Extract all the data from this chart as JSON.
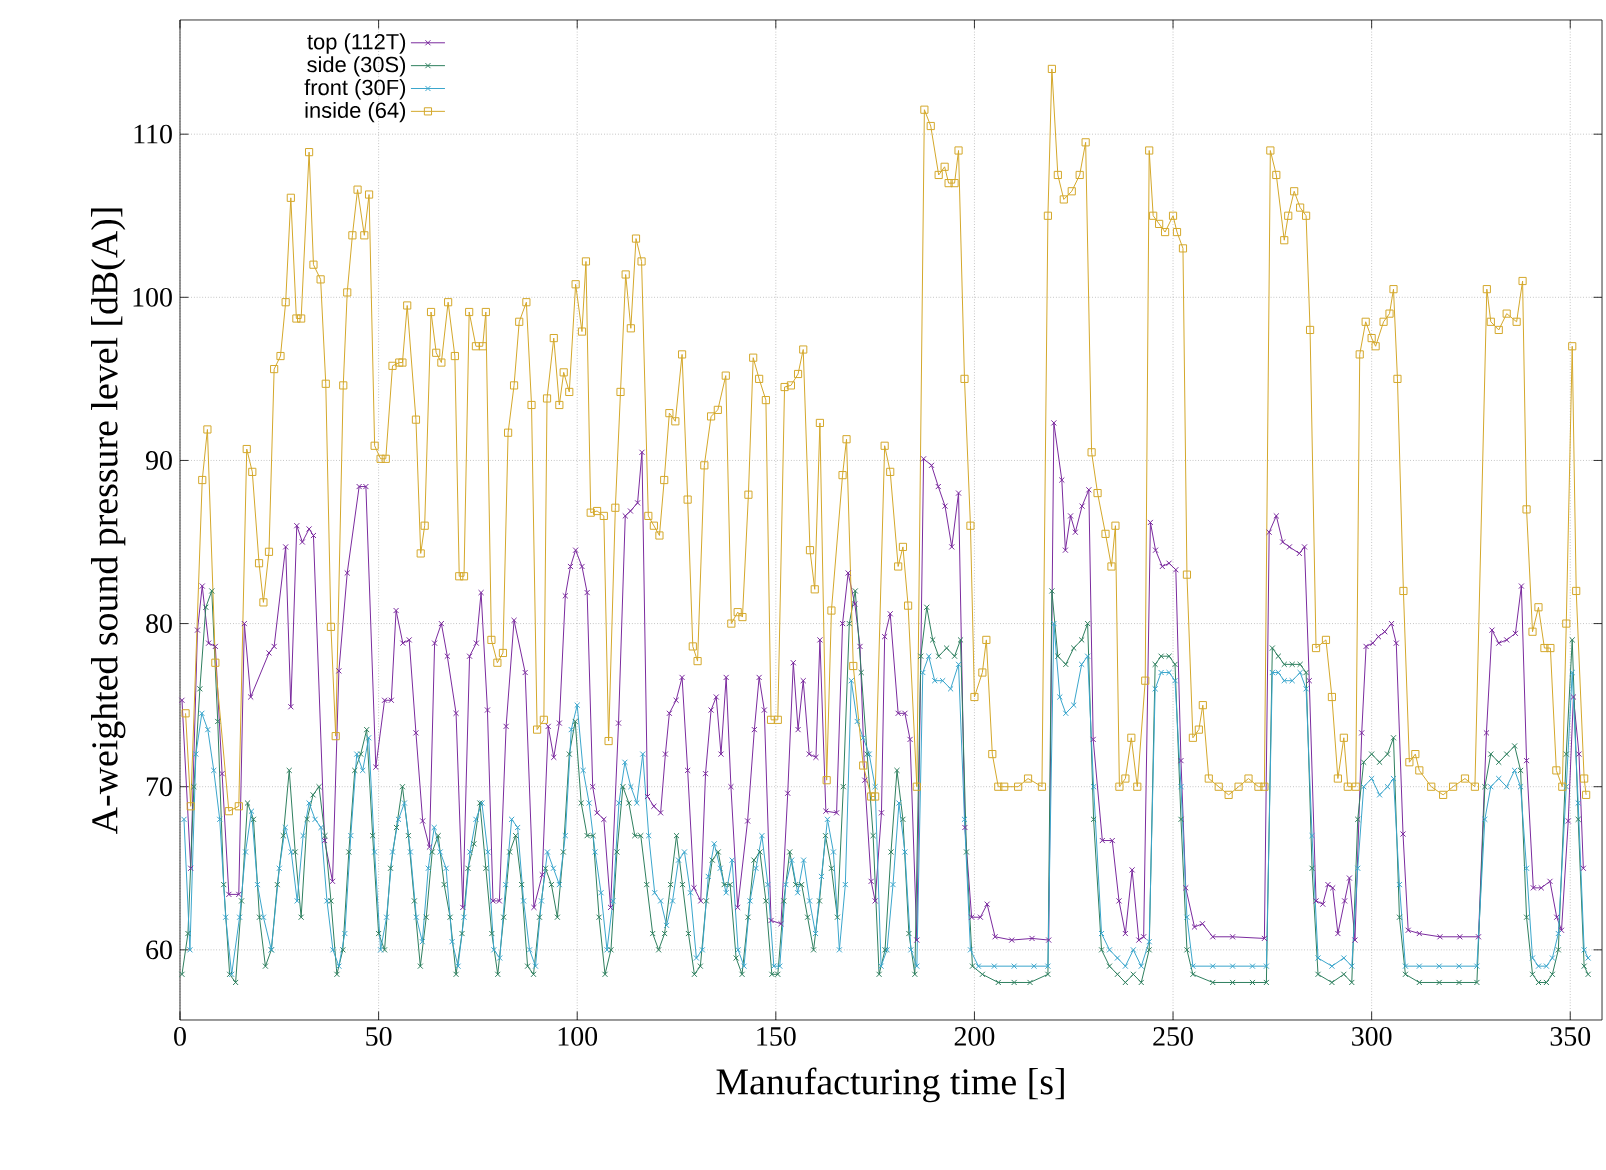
{
  "chart_data": {
    "type": "line",
    "xlabel": "Manufacturing time [s]",
    "ylabel": "A-weighted sound pressure level [dB(A)]",
    "xlim": [
      0,
      358
    ],
    "ylim": [
      55.7,
      117
    ],
    "xticks": [
      0,
      50,
      100,
      150,
      200,
      250,
      300,
      350
    ],
    "yticks": [
      60,
      70,
      80,
      90,
      100,
      110
    ],
    "grid": true,
    "legend": "top left",
    "series": [
      {
        "name": "top (112T)",
        "color": "#7a2a9e",
        "marker": "cross",
        "x": [
          0.5,
          2.7,
          4.4,
          5.6,
          7.2,
          8.9,
          10.6,
          12.3,
          14.8,
          16.2,
          17.8,
          22.4,
          23.7,
          26.6,
          27.9,
          29.4,
          30.8,
          32.5,
          33.6,
          36.4,
          38.4,
          40,
          42.1,
          45.1,
          46.8,
          49.3,
          51.5,
          53.2,
          54.4,
          56.1,
          57.7,
          59.4,
          61.1,
          62.8,
          64.1,
          65.8,
          67.3,
          69.5,
          71.2,
          72.9,
          74.6,
          75.8,
          77.4,
          78.8,
          80.4,
          82.1,
          84.1,
          86.9,
          89.1,
          91.2,
          92.7,
          94.1,
          95.5,
          97,
          98.3,
          99.6,
          101.2,
          102.5,
          103.9,
          105,
          106.7,
          108.4,
          110.4,
          112.1,
          113.4,
          115.2,
          116.3,
          117.7,
          119.3,
          121,
          122.2,
          123.2,
          124.9,
          126.4,
          127.8,
          129.4,
          131.1,
          132.3,
          133.7,
          135,
          136.2,
          137.5,
          138.7,
          140.4,
          142.9,
          144.6,
          145.8,
          147.1,
          148.8,
          151.3,
          153,
          154.4,
          155.6,
          156.9,
          158.4,
          160.1,
          161.1,
          162.6,
          165.3,
          166.8,
          168.2,
          169.9,
          171.2,
          172.4,
          174,
          175,
          176.6,
          177.4,
          178.8,
          180.8,
          182.5,
          183.8,
          185.5,
          187.2,
          189.2,
          190.9,
          192.6,
          194.3,
          196,
          197.6,
          199.3,
          201.5,
          203.2,
          205.2,
          209.4,
          214.5,
          218.7,
          220,
          222,
          222.9,
          224.2,
          225.4,
          227.1,
          228.8,
          229.9,
          232.2,
          234.7,
          236.4,
          238,
          239.7,
          241.4,
          242.6,
          244.3,
          245.6,
          247.3,
          249,
          250.7,
          252,
          253.2,
          255.4,
          257.4,
          260,
          265,
          273,
          274.2,
          276,
          277.6,
          279.3,
          281.8,
          283.1,
          284.3,
          286,
          287.7,
          289,
          290.2,
          291.5,
          293.2,
          294.4,
          295.8,
          297.5,
          298.6,
          300.3,
          301.7,
          303.3,
          305,
          306.2,
          307.9,
          309.2,
          312,
          317.2,
          322.2,
          326.9,
          328.9,
          330.3,
          332,
          334,
          336.2,
          337.7,
          339,
          340.7,
          342.7,
          344.9,
          346.6,
          347.8,
          349.5,
          350.8,
          352.2,
          353.3
        ],
        "values": [
          75.3,
          65,
          79.6,
          82.3,
          78.8,
          78.6,
          70.8,
          63.4,
          63.4,
          80,
          75.5,
          78.2,
          78.6,
          84.7,
          74.9,
          86,
          85,
          85.8,
          85.4,
          66.7,
          64.2,
          77.1,
          83.1,
          88.4,
          88.4,
          71.2,
          75.3,
          75.3,
          80.8,
          78.8,
          79,
          73.3,
          67.9,
          66.3,
          78.8,
          80,
          78,
          74.5,
          62.6,
          78,
          78.8,
          81.9,
          74.7,
          63,
          63,
          73.7,
          80.2,
          77,
          62.6,
          64.6,
          73.7,
          71.8,
          73.9,
          81.7,
          83.5,
          84.5,
          83.5,
          81.9,
          70,
          68.4,
          68,
          62.6,
          73.9,
          86.6,
          86.9,
          87.4,
          90.5,
          69.4,
          68.8,
          68.4,
          72,
          74.5,
          75.3,
          76.7,
          71,
          63.8,
          63,
          70.8,
          74.7,
          75.5,
          72,
          76.7,
          70,
          62.6,
          67.9,
          73.5,
          76.7,
          74.7,
          61.8,
          61.6,
          69.6,
          77.6,
          73.5,
          76.5,
          72,
          71.8,
          79,
          68.5,
          68.4,
          80,
          83.1,
          81.2,
          78.6,
          70.4,
          64.2,
          63,
          68.4,
          79.2,
          80.6,
          74.5,
          74.5,
          72.9,
          60.6,
          90.1,
          89.7,
          88.4,
          87.2,
          84.7,
          88,
          67.5,
          62,
          62,
          62.8,
          60.8,
          60.6,
          60.7,
          60.6,
          92.3,
          88.8,
          84.5,
          86.6,
          85.6,
          87.2,
          88.2,
          72.9,
          66.7,
          66.7,
          63,
          61,
          64.9,
          60.6,
          60.8,
          86.2,
          84.5,
          83.5,
          83.7,
          83.3,
          71.6,
          63.8,
          61.4,
          61.6,
          60.8,
          60.8,
          60.7,
          85.6,
          86.6,
          85,
          84.7,
          84.3,
          84.7,
          76.5,
          63,
          62.8,
          64,
          63.8,
          61,
          63,
          64.4,
          60.6,
          73.3,
          78.6,
          78.8,
          79.2,
          79.5,
          80,
          78.8,
          67.1,
          61.2,
          61,
          60.8,
          60.8,
          60.8,
          73.3,
          79.6,
          78.8,
          79,
          79.4,
          82.3,
          71.6,
          63.8,
          63.8,
          64.2,
          62,
          61.2,
          67.9,
          75.5,
          72,
          65
        ]
      },
      {
        "name": "side (30S)",
        "color": "#2e7f5e",
        "marker": "cross",
        "x": [
          0.5,
          2,
          3.5,
          5,
          6.5,
          8,
          9.5,
          11,
          12.5,
          14,
          15.5,
          17,
          18.5,
          20,
          21.5,
          23,
          24.5,
          26,
          27.5,
          29,
          30.5,
          32,
          33.5,
          35,
          36.5,
          38,
          39.5,
          41,
          42.5,
          44,
          45.5,
          47,
          48.5,
          50,
          51.5,
          53,
          54.5,
          56,
          57.5,
          59,
          60.5,
          62,
          63.5,
          65,
          66.5,
          68,
          69.5,
          71,
          72.5,
          74,
          75.5,
          77,
          78.5,
          80,
          81.5,
          83,
          84.5,
          86,
          87.5,
          89,
          90.5,
          92,
          93.5,
          95,
          96.5,
          98,
          99.5,
          101,
          102.5,
          104,
          105.5,
          107,
          108.5,
          110,
          111.5,
          113,
          114.5,
          116,
          117.5,
          119,
          120.5,
          122,
          123.5,
          125,
          126.5,
          128,
          129.5,
          131,
          132.5,
          134,
          135.5,
          137,
          138.5,
          140,
          141.5,
          143,
          144.5,
          146,
          147.5,
          149,
          150.5,
          152,
          153.5,
          155,
          156.5,
          158,
          159.5,
          161,
          162.5,
          164,
          165.5,
          167,
          168.5,
          170,
          171.5,
          173,
          174.5,
          176,
          177.5,
          179,
          180.5,
          182,
          183.5,
          185,
          186.5,
          188,
          189.5,
          191,
          193,
          195,
          196.5,
          198,
          199.5,
          202,
          206,
          210,
          214,
          218.5,
          219.5,
          221,
          223,
          225,
          227,
          228.5,
          230,
          232,
          234,
          236,
          238,
          240,
          242,
          244,
          245.5,
          247,
          249,
          250.5,
          252,
          253.5,
          255,
          260,
          265,
          270,
          273.5,
          275,
          276.5,
          278,
          280,
          282,
          283.5,
          285,
          286.5,
          290,
          293,
          295,
          296.5,
          298,
          300,
          302,
          304,
          305.5,
          307,
          308.5,
          312,
          317,
          322,
          326.5,
          328.5,
          330,
          332,
          334,
          336,
          337.5,
          339,
          340.5,
          342,
          344,
          345.5,
          347,
          349,
          350.5,
          352,
          353.5,
          354.5
        ],
        "values": [
          58.5,
          61,
          70,
          76,
          81,
          82,
          74,
          64,
          58.5,
          58,
          63,
          69,
          68,
          62,
          59,
          60,
          64,
          67,
          71,
          66,
          62,
          68,
          69.5,
          70,
          67,
          63,
          58.5,
          60,
          66,
          71,
          72,
          73.5,
          67,
          61,
          60,
          65,
          67.5,
          70,
          67,
          63,
          59,
          62,
          66,
          67,
          64,
          62,
          58.5,
          61,
          65,
          66.5,
          69,
          65,
          61,
          58.5,
          62,
          66,
          67,
          64,
          59,
          58.5,
          62,
          65,
          64,
          62,
          66,
          72,
          74,
          69,
          67,
          67,
          62,
          58.5,
          60,
          66,
          70,
          69,
          67,
          67,
          64,
          61,
          60,
          61,
          64,
          67,
          64,
          61,
          58.5,
          59,
          63,
          65.5,
          66,
          64,
          64,
          59.5,
          58.5,
          62,
          65.5,
          66,
          63,
          58.5,
          58.5,
          63,
          66,
          64,
          64,
          62,
          60,
          63,
          67,
          65,
          62,
          70,
          80,
          82,
          77,
          72,
          67,
          58.5,
          60,
          66,
          71,
          68,
          61,
          58.5,
          78,
          81,
          79,
          78,
          78.5,
          78,
          79,
          66,
          59,
          58.5,
          58,
          58,
          58,
          58.5,
          82,
          78,
          77.5,
          78.5,
          79,
          80,
          68,
          60,
          59,
          58.5,
          58,
          58.5,
          58,
          60,
          77.5,
          78,
          78,
          77.5,
          68,
          60,
          58.5,
          58,
          58,
          58,
          58,
          78.5,
          78,
          77.5,
          77.5,
          77.5,
          77,
          65,
          58.5,
          58,
          58.5,
          58,
          68,
          71.5,
          72,
          71.5,
          72,
          73,
          62,
          58.5,
          58,
          58,
          58,
          58,
          70,
          72,
          71.5,
          72,
          72.5,
          71,
          62,
          58.5,
          58,
          58,
          58.5,
          60,
          72,
          79,
          68,
          59,
          58.5
        ]
      },
      {
        "name": "front (30F)",
        "color": "#3aa6cc",
        "marker": "cross",
        "x": [
          1,
          2.5,
          4,
          5.5,
          7,
          8.5,
          10,
          11.5,
          13,
          15,
          16.5,
          18,
          19.5,
          21,
          23,
          25,
          26.5,
          28,
          29.5,
          31,
          32.5,
          34,
          35.5,
          37,
          38.5,
          40,
          41.5,
          43,
          44.5,
          46,
          47.5,
          49,
          50.5,
          52,
          53.5,
          55,
          56.5,
          58,
          59.5,
          61,
          62.5,
          64,
          65.5,
          67,
          68.5,
          70,
          71.5,
          73,
          74.5,
          76,
          77.5,
          79,
          80.5,
          82,
          83.5,
          85,
          86.5,
          88,
          89.5,
          91,
          92.5,
          94,
          95.5,
          97,
          98.5,
          100,
          101.5,
          103,
          104.5,
          106,
          107.5,
          109,
          110.5,
          112,
          113.5,
          115,
          116.5,
          118,
          119.5,
          121,
          122.5,
          124,
          125.5,
          127,
          128.5,
          130,
          131.5,
          133,
          134.5,
          136,
          137.5,
          139,
          140.5,
          142,
          143.5,
          145,
          146.5,
          148,
          149.5,
          151,
          152.5,
          154,
          155.5,
          157,
          158.5,
          160,
          161.5,
          163,
          164.5,
          166,
          167.5,
          169,
          170.5,
          172,
          173.5,
          175,
          176.5,
          178,
          179.5,
          181,
          182.5,
          184,
          185.5,
          187,
          188.5,
          190,
          192,
          194,
          196,
          197.5,
          199,
          201,
          205,
          210,
          215,
          218.5,
          220,
          221.5,
          223,
          225,
          227,
          228.5,
          230,
          232,
          234,
          236,
          238,
          240,
          242,
          244,
          245.5,
          247,
          249,
          250.5,
          252,
          253.5,
          255,
          260,
          265,
          270,
          273.5,
          275,
          276.5,
          278,
          280,
          282,
          283.5,
          285,
          286.5,
          290,
          293,
          295,
          296.5,
          298,
          300,
          302,
          304,
          305.5,
          307,
          308.5,
          312,
          317,
          322,
          326.5,
          328.5,
          330,
          332,
          334,
          336,
          337.5,
          339,
          340.5,
          342,
          344,
          345.5,
          347,
          349,
          350.5,
          352,
          353.5,
          354.5
        ],
        "values": [
          68,
          60,
          72,
          74.5,
          73.5,
          71,
          68,
          62,
          58.5,
          62,
          66,
          68.5,
          64,
          62,
          60,
          65,
          67.5,
          66,
          63,
          67,
          69,
          68,
          67.5,
          63,
          60,
          59,
          61,
          67,
          72,
          71,
          73,
          66,
          60,
          62,
          66,
          68,
          69,
          66,
          62,
          60.5,
          65,
          67.5,
          66,
          65,
          60.5,
          59,
          62,
          66,
          68,
          69,
          66,
          60,
          59.5,
          64,
          68,
          67.5,
          63,
          60,
          59,
          63,
          66,
          65,
          64,
          67,
          73.5,
          75,
          71,
          69,
          66,
          63.5,
          60,
          63,
          69,
          71.5,
          70,
          69,
          72,
          67,
          63.5,
          63,
          61.5,
          63,
          65.5,
          66,
          63.5,
          59.5,
          60,
          64.5,
          66.5,
          65,
          63.5,
          65.5,
          60,
          59,
          63,
          65,
          67,
          64,
          59,
          59,
          64,
          65.5,
          63.5,
          65.5,
          63,
          61,
          64.5,
          68,
          66,
          60,
          64,
          76.5,
          74,
          73,
          72,
          70,
          59,
          60,
          64,
          69,
          66,
          60,
          59,
          77,
          78,
          76.5,
          76.5,
          76,
          77.5,
          68,
          60,
          59,
          59,
          59,
          59,
          59,
          80,
          75.5,
          74.5,
          75,
          77.5,
          78,
          70,
          61,
          60,
          59.5,
          59,
          60,
          59,
          60.5,
          76,
          77,
          77,
          76.5,
          70,
          62,
          59,
          59,
          59,
          59,
          59,
          77,
          77,
          76.5,
          76.5,
          77,
          76,
          67,
          59.5,
          59,
          59.5,
          59,
          65,
          70,
          70.5,
          69.5,
          70,
          70.5,
          64,
          59,
          59,
          59,
          59,
          59,
          68,
          70,
          70.5,
          70,
          71,
          70,
          65,
          59.5,
          59,
          59,
          59.5,
          61,
          70,
          77,
          69,
          60,
          59.5
        ]
      },
      {
        "name": "inside (64)",
        "color": "#d4a82a",
        "marker": "square",
        "x": [
          1.4,
          2.7,
          5.6,
          6.9,
          8.9,
          12.3,
          14.8,
          16.8,
          18.2,
          19.9,
          21,
          22.4,
          23.7,
          25.3,
          26.6,
          27.9,
          29.3,
          30.5,
          32.5,
          33.6,
          35.4,
          36.7,
          38,
          39.2,
          41.1,
          42.1,
          43.4,
          44.7,
          46.4,
          47.6,
          49,
          50.5,
          51.8,
          53.5,
          55.2,
          56,
          57.2,
          59.4,
          60.6,
          61.6,
          63.2,
          64.5,
          65.8,
          67.5,
          69.2,
          70.3,
          71.5,
          72.8,
          74.5,
          76.2,
          77,
          78.4,
          79.9,
          81.3,
          82.6,
          84.1,
          85.4,
          87.2,
          88.5,
          89.9,
          91.6,
          92.4,
          94.1,
          95.5,
          96.6,
          98,
          99.6,
          101.2,
          102.2,
          103.4,
          105,
          106.7,
          107.9,
          109.6,
          110.9,
          112.2,
          113.5,
          114.8,
          116.2,
          117.9,
          119.3,
          120.7,
          121.9,
          123.2,
          124.7,
          126.4,
          127.8,
          129.1,
          130.3,
          132,
          133.7,
          135.4,
          137.4,
          138.8,
          140.4,
          141.6,
          143.1,
          144.3,
          145.8,
          147.5,
          148.8,
          150.5,
          152.2,
          153.8,
          155.6,
          156.9,
          158.6,
          159.8,
          161.1,
          162.8,
          164,
          166.8,
          167.8,
          169.5,
          172,
          174,
          175,
          177.4,
          178.8,
          180.8,
          182,
          183.3,
          185.5,
          187.4,
          189,
          191,
          192.5,
          193.5,
          195,
          196,
          197.5,
          199,
          200,
          202,
          203,
          204.5,
          206,
          207.5,
          211,
          213.5,
          217,
          218.5,
          219.5,
          221,
          222.5,
          224.5,
          226.5,
          228,
          229.5,
          231,
          233,
          234.5,
          235.5,
          236.5,
          238,
          239.5,
          241,
          243,
          244,
          245,
          246.5,
          248,
          250,
          251,
          252.5,
          253.5,
          255,
          256.5,
          257.5,
          259,
          261.5,
          264,
          266.5,
          269,
          271.5,
          273,
          274.5,
          276,
          278,
          279,
          280.5,
          282,
          283.5,
          284.5,
          286,
          288.5,
          290,
          291.5,
          293,
          294,
          296,
          297,
          298.5,
          300,
          301,
          303,
          304.5,
          305.5,
          306.5,
          308,
          309.5,
          311,
          312,
          315,
          318,
          320.5,
          323.5,
          326,
          329,
          330,
          332,
          334,
          336.5,
          338,
          339,
          340.5,
          342,
          343.5,
          345,
          346.5,
          348,
          349,
          350.5,
          351.5,
          353.5,
          354
        ],
        "values": [
          74.5,
          68.8,
          88.8,
          91.9,
          77.6,
          68.5,
          68.8,
          90.7,
          89.3,
          83.7,
          81.3,
          84.4,
          95.6,
          96.4,
          99.7,
          106.1,
          98.7,
          98.7,
          108.9,
          102,
          101.1,
          94.7,
          79.8,
          73.1,
          94.6,
          100.3,
          103.8,
          106.6,
          103.8,
          106.3,
          90.9,
          90.1,
          90.1,
          95.8,
          96,
          96,
          99.5,
          92.5,
          84.3,
          86,
          99.1,
          96.6,
          96,
          99.7,
          96.4,
          82.9,
          82.9,
          99.1,
          97,
          97,
          99.1,
          79,
          77.6,
          78.2,
          91.7,
          94.6,
          98.5,
          99.7,
          93.4,
          73.5,
          74.1,
          93.8,
          97.5,
          93.4,
          95.4,
          94.2,
          100.8,
          97.9,
          102.2,
          86.8,
          86.9,
          86.6,
          72.8,
          87.1,
          94.2,
          101.4,
          98.1,
          103.6,
          102.2,
          86.6,
          86,
          85.4,
          88.8,
          92.9,
          92.4,
          96.5,
          87.6,
          78.6,
          77.7,
          89.7,
          92.7,
          93.1,
          95.2,
          80,
          80.7,
          80.4,
          87.9,
          96.3,
          95,
          93.7,
          74.1,
          74.1,
          94.5,
          94.6,
          95.3,
          96.8,
          84.5,
          82.1,
          92.3,
          70.4,
          80.8,
          89.1,
          91.3,
          77.4,
          71.3,
          69.4,
          69.4,
          90.9,
          89.3,
          83.5,
          84.7,
          81.1,
          70,
          111.5,
          110.5,
          107.5,
          108,
          107,
          107,
          109,
          95,
          86,
          75.5,
          77,
          79,
          72,
          70,
          70,
          70,
          70.5,
          70,
          105,
          114,
          107.5,
          106,
          106.5,
          107.5,
          109.5,
          90.5,
          88,
          85.5,
          83.5,
          86,
          70,
          70.5,
          73,
          70,
          76.5,
          109,
          105,
          104.5,
          104,
          105,
          104,
          103,
          83,
          73,
          73.5,
          75,
          70.5,
          70,
          69.5,
          70,
          70.5,
          70,
          70,
          109,
          107.5,
          103.5,
          105,
          106.5,
          105.5,
          105,
          98,
          78.5,
          79,
          75.5,
          70.5,
          73,
          70,
          70,
          96.5,
          98.5,
          97.5,
          97,
          98.5,
          99,
          100.5,
          95,
          82,
          71.5,
          72,
          71,
          70,
          69.5,
          70,
          70.5,
          70,
          100.5,
          98.5,
          98,
          99,
          98.5,
          101,
          87,
          79.5,
          81,
          78.5,
          78.5,
          71,
          70,
          80,
          97,
          82,
          70.5,
          69.5
        ]
      }
    ]
  }
}
